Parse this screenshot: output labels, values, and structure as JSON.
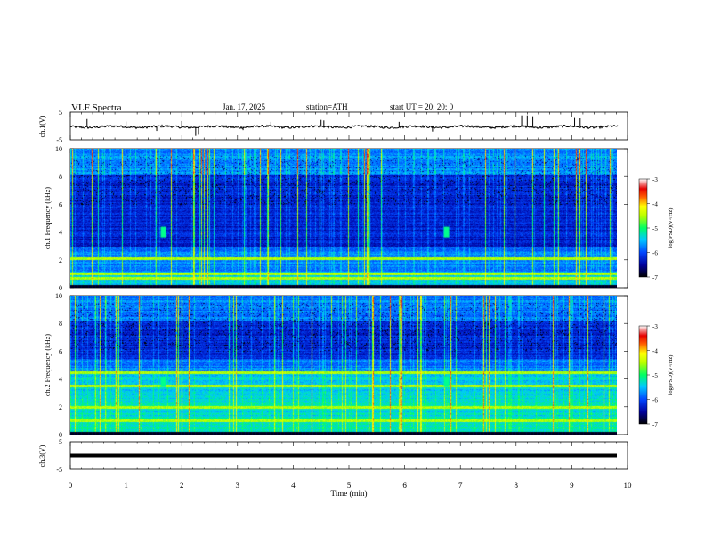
{
  "header": {
    "title": "VLF  Spectra",
    "date": "Jan. 17, 2025",
    "station": "station=ATH",
    "start": "start  UT  =   20: 20: 0"
  },
  "chart_data": [
    {
      "type": "line",
      "panel": "ch1",
      "ylabel": "ch.1(V)",
      "ylim": [
        -5,
        5
      ],
      "yticks": [
        "5",
        "-5"
      ],
      "x_range_min": [
        0,
        9.83
      ],
      "baseline_v": -0.3,
      "noise_amp_v": 0.4,
      "spike_times_min": [
        0.3,
        1.0,
        1.55,
        2.0,
        2.25,
        2.3,
        3.1,
        3.6,
        4.5,
        4.55,
        5.9,
        6.5,
        8.1,
        8.2,
        8.3,
        9.05,
        9.15
      ],
      "spike_amp_v": [
        2.5,
        1.6,
        -1.8,
        1.8,
        -3.6,
        -3.2,
        -1.5,
        1.5,
        2.2,
        2.0,
        1.5,
        -2.0,
        3.8,
        3.8,
        3.5,
        3.2,
        3.0
      ]
    },
    {
      "type": "heatmap",
      "panel": "ch1",
      "ylabel": "ch.1 Frequency (kHz)",
      "ylim": [
        0,
        10
      ],
      "yticks": [
        "0",
        "2",
        "4",
        "6",
        "8",
        "10"
      ],
      "colorbar": {
        "label": "log(PSD)(V²/Hz)",
        "range": [
          -7,
          -3
        ],
        "ticks": [
          "-3",
          "-4",
          "-5",
          "-6",
          "-7"
        ]
      },
      "strong_lines_khz": [
        2.1,
        1.0,
        0.7
      ],
      "bursts": [
        {
          "t_min": 1.67,
          "f_khz": 4.0
        },
        {
          "t_min": 6.75,
          "f_khz": 4.0
        }
      ]
    },
    {
      "type": "heatmap",
      "panel": "ch2",
      "ylabel": "ch.2 Frequency (kHz)",
      "ylim": [
        0,
        10
      ],
      "yticks": [
        "0",
        "2",
        "4",
        "6",
        "8",
        "10"
      ],
      "colorbar": {
        "label": "log(PSD)(V²/Hz)",
        "range": [
          -7,
          -3
        ],
        "ticks": [
          "-3",
          "-4",
          "-5",
          "-6",
          "-7"
        ]
      },
      "strong_lines_khz": [
        4.5,
        3.5,
        2.0,
        1.0
      ],
      "bursts": [
        {
          "t_min": 1.67,
          "f_khz": 3.8
        },
        {
          "t_min": 6.75,
          "f_khz": 3.8
        }
      ]
    },
    {
      "type": "line",
      "panel": "ch3",
      "ylabel": "ch.3(V)",
      "ylim": [
        -5,
        5
      ],
      "yticks": [
        "5",
        "0",
        "-5"
      ],
      "x_range_min": [
        0,
        9.83
      ],
      "baseline_v": 0.0
    }
  ],
  "xaxis": {
    "label": "Time  (min)",
    "range": [
      0,
      10
    ],
    "ticks": [
      "0",
      "1",
      "2",
      "3",
      "4",
      "5",
      "6",
      "7",
      "8",
      "9",
      "10"
    ]
  }
}
